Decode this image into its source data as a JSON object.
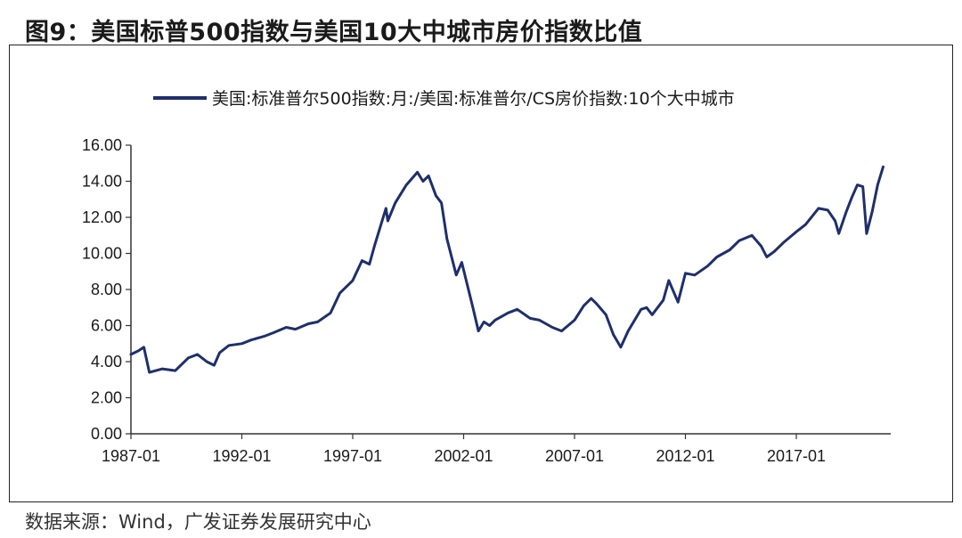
{
  "figure": {
    "title": "图9：美国标普500指数与美国10大中城市房价指数比值",
    "source": "数据来源：Wind，广发证券发展研究中心"
  },
  "chart_data": {
    "type": "line",
    "title": "",
    "xlabel": "",
    "ylabel": "",
    "ylim": [
      0,
      16
    ],
    "yticks": [
      "0.00",
      "2.00",
      "4.00",
      "6.00",
      "8.00",
      "10.00",
      "12.00",
      "14.00",
      "16.00"
    ],
    "xticks": [
      "1987-01",
      "1992-01",
      "1997-01",
      "2002-01",
      "2007-01",
      "2012-01",
      "2017-01"
    ],
    "grid": false,
    "legend": "top",
    "line_color": "#1f2f6b",
    "series": [
      {
        "name": "美国:标准普尔500指数:月:/美国:标准普尔/CS房价指数:10个大中城市",
        "x": [
          "1987-01",
          "1987-05",
          "1987-08",
          "1987-11",
          "1988-06",
          "1989-01",
          "1989-08",
          "1990-01",
          "1990-06",
          "1990-10",
          "1991-01",
          "1991-06",
          "1992-01",
          "1992-06",
          "1993-01",
          "1993-06",
          "1994-01",
          "1994-06",
          "1995-01",
          "1995-06",
          "1996-01",
          "1996-06",
          "1997-01",
          "1997-06",
          "1997-10",
          "1998-01",
          "1998-07",
          "1998-08",
          "1998-12",
          "1999-06",
          "1999-12",
          "2000-03",
          "2000-06",
          "2000-10",
          "2001-01",
          "2001-04",
          "2001-09",
          "2001-12",
          "2002-06",
          "2002-09",
          "2002-12",
          "2003-03",
          "2003-06",
          "2004-01",
          "2004-06",
          "2005-01",
          "2005-06",
          "2006-01",
          "2006-06",
          "2007-01",
          "2007-06",
          "2007-10",
          "2008-01",
          "2008-06",
          "2008-10",
          "2009-02",
          "2009-06",
          "2010-01",
          "2010-04",
          "2010-07",
          "2011-01",
          "2011-04",
          "2011-09",
          "2012-01",
          "2012-06",
          "2013-01",
          "2013-06",
          "2014-01",
          "2014-06",
          "2015-01",
          "2015-06",
          "2015-09",
          "2016-01",
          "2016-06",
          "2017-01",
          "2017-06",
          "2018-01",
          "2018-06",
          "2018-10",
          "2018-12",
          "2019-04",
          "2019-07",
          "2019-10",
          "2020-01",
          "2020-03",
          "2020-06",
          "2020-09",
          "2020-12"
        ],
        "values": [
          4.4,
          4.6,
          4.8,
          3.4,
          3.6,
          3.5,
          4.2,
          4.4,
          4.0,
          3.8,
          4.5,
          4.9,
          5.0,
          5.2,
          5.4,
          5.6,
          5.9,
          5.8,
          6.1,
          6.2,
          6.7,
          7.8,
          8.5,
          9.6,
          9.4,
          10.5,
          12.5,
          11.8,
          12.8,
          13.8,
          14.5,
          14.0,
          14.3,
          13.2,
          12.8,
          10.8,
          8.8,
          9.5,
          7.0,
          5.7,
          6.2,
          6.0,
          6.3,
          6.7,
          6.9,
          6.4,
          6.3,
          5.9,
          5.7,
          6.3,
          7.1,
          7.5,
          7.2,
          6.6,
          5.5,
          4.8,
          5.7,
          6.9,
          7.0,
          6.6,
          7.4,
          8.5,
          7.3,
          8.9,
          8.8,
          9.3,
          9.8,
          10.2,
          10.7,
          11.0,
          10.4,
          9.8,
          10.1,
          10.6,
          11.2,
          11.6,
          12.5,
          12.4,
          11.8,
          11.1,
          12.3,
          13.1,
          13.8,
          13.7,
          11.1,
          12.3,
          13.8,
          14.8
        ]
      }
    ]
  }
}
